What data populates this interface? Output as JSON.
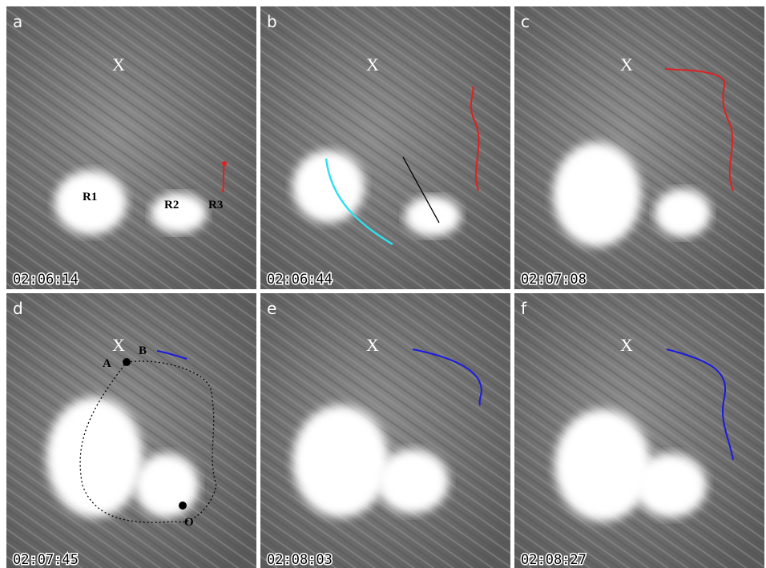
{
  "panels": [
    {
      "label": "a",
      "time": "02:06:14",
      "annotations": [
        "X",
        "R1",
        "R2",
        "R3"
      ]
    },
    {
      "label": "b",
      "time": "02:06:44",
      "annotations": [
        "X"
      ]
    },
    {
      "label": "c",
      "time": "02:07:08",
      "annotations": [
        "X"
      ]
    },
    {
      "label": "d",
      "time": "02:07:45",
      "annotations": [
        "X",
        "A",
        "B",
        "O"
      ]
    },
    {
      "label": "e",
      "time": "02:08:03",
      "annotations": [
        "X"
      ]
    },
    {
      "label": "f",
      "time": "02:08:27",
      "annotations": [
        "X"
      ]
    }
  ]
}
